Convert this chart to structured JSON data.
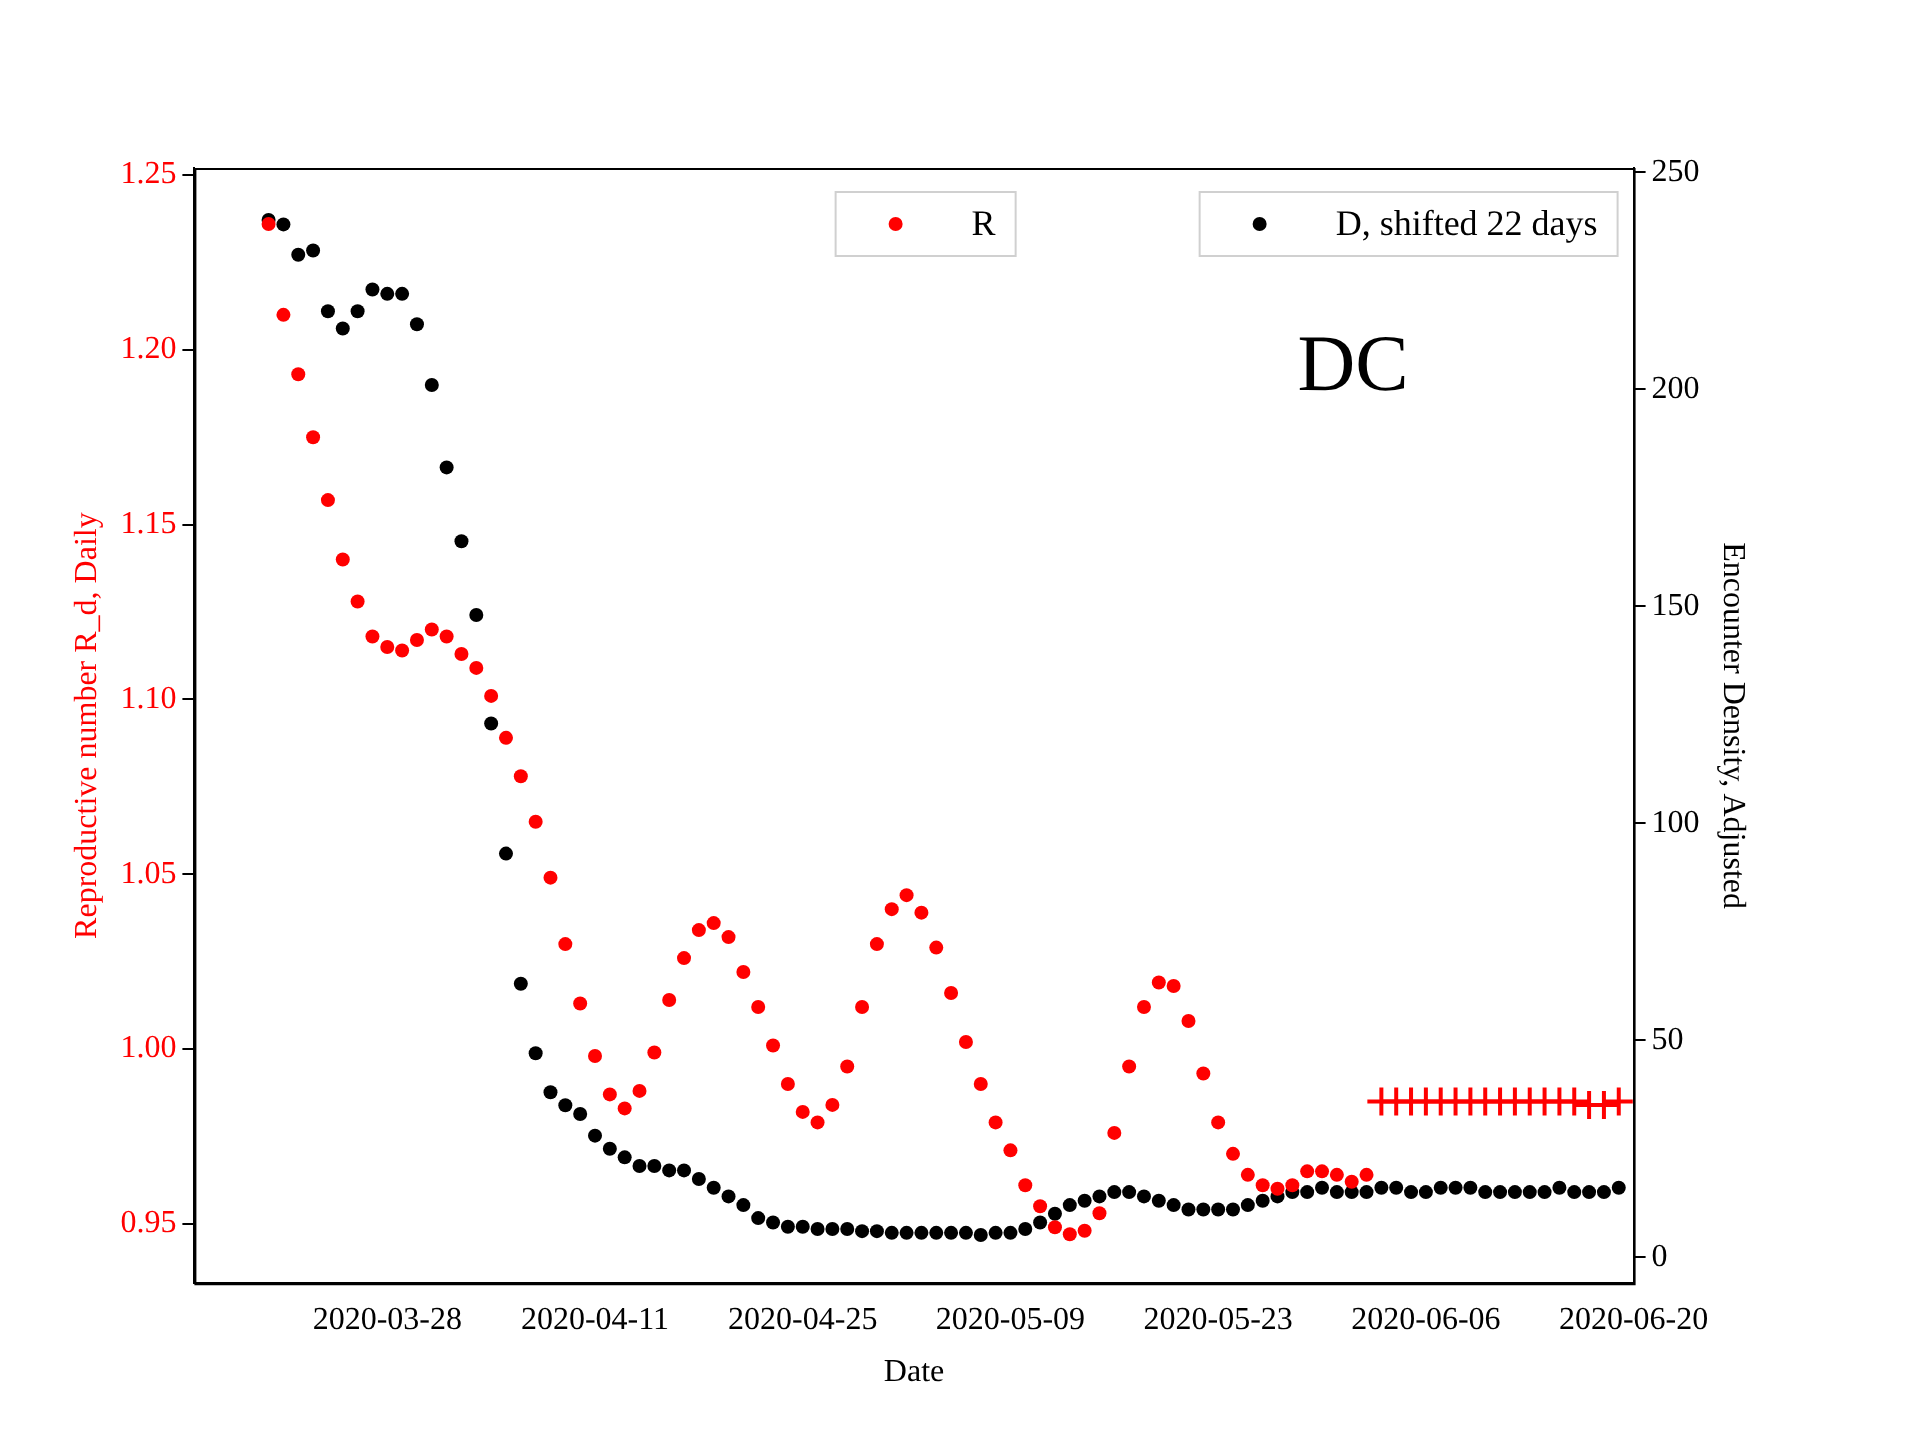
{
  "chart_data": {
    "type": "scatter",
    "xlabel": "Date",
    "ylabel": "Reproductive number R_d, Daily",
    "y2label": "Encounter Density, Adjusted",
    "annotations": [
      "DC"
    ],
    "xlim": [
      "2020-03-15",
      "2020-06-20"
    ],
    "xticks": [
      "2020-03-28",
      "2020-04-11",
      "2020-04-25",
      "2020-05-09",
      "2020-05-23",
      "2020-06-06",
      "2020-06-20"
    ],
    "ylim": [
      0.933,
      1.252
    ],
    "yticks": [
      0.95,
      {
        "value": 1.0,
        "label": "1.00"
      },
      1.05,
      {
        "value": 1.1,
        "label": "1.10"
      },
      1.15,
      {
        "value": 1.2,
        "label": "1.20"
      },
      1.25
    ],
    "y2lim": [
      -6,
      251
    ],
    "y2ticks": [
      0,
      50,
      100,
      150,
      200,
      250
    ],
    "grid": false,
    "legend": "top right",
    "marker": "circle",
    "series": [
      {
        "name": "R",
        "color": "#ff0000",
        "axis": "y",
        "x": [
          "2020-03-20",
          "2020-03-21",
          "2020-03-22",
          "2020-03-23",
          "2020-03-24",
          "2020-03-25",
          "2020-03-26",
          "2020-03-27",
          "2020-03-28",
          "2020-03-29",
          "2020-03-30",
          "2020-03-31",
          "2020-04-01",
          "2020-04-02",
          "2020-04-03",
          "2020-04-04",
          "2020-04-05",
          "2020-04-06",
          "2020-04-07",
          "2020-04-08",
          "2020-04-09",
          "2020-04-10",
          "2020-04-11",
          "2020-04-12",
          "2020-04-13",
          "2020-04-14",
          "2020-04-15",
          "2020-04-16",
          "2020-04-17",
          "2020-04-18",
          "2020-04-19",
          "2020-04-20",
          "2020-04-21",
          "2020-04-22",
          "2020-04-23",
          "2020-04-24",
          "2020-04-25",
          "2020-04-26",
          "2020-04-27",
          "2020-04-28",
          "2020-04-29",
          "2020-04-30",
          "2020-05-01",
          "2020-05-02",
          "2020-05-03",
          "2020-05-04",
          "2020-05-05",
          "2020-05-06",
          "2020-05-07",
          "2020-05-08",
          "2020-05-09",
          "2020-05-10",
          "2020-05-11",
          "2020-05-12",
          "2020-05-13",
          "2020-05-14",
          "2020-05-15",
          "2020-05-16",
          "2020-05-17",
          "2020-05-18",
          "2020-05-19",
          "2020-05-20",
          "2020-05-21",
          "2020-05-22",
          "2020-05-23",
          "2020-05-24",
          "2020-05-25",
          "2020-05-26",
          "2020-05-27",
          "2020-05-28",
          "2020-05-29",
          "2020-05-30",
          "2020-05-31",
          "2020-06-01",
          "2020-06-02"
        ],
        "values": [
          1.236,
          1.21,
          1.193,
          1.175,
          1.157,
          1.14,
          1.128,
          1.118,
          1.115,
          1.114,
          1.117,
          1.12,
          1.118,
          1.113,
          1.109,
          1.101,
          1.089,
          1.078,
          1.065,
          1.049,
          1.03,
          1.013,
          0.998,
          0.987,
          0.983,
          0.988,
          0.999,
          1.014,
          1.026,
          1.034,
          1.036,
          1.032,
          1.022,
          1.012,
          1.001,
          0.99,
          0.982,
          0.979,
          0.984,
          0.995,
          1.012,
          1.03,
          1.04,
          1.044,
          1.039,
          1.029,
          1.016,
          1.002,
          0.99,
          0.979,
          0.971,
          0.961,
          0.955,
          0.949,
          0.947,
          0.948,
          0.953,
          0.976,
          0.995,
          1.012,
          1.019,
          1.018,
          1.008,
          0.993,
          0.979,
          0.97,
          0.964,
          0.961,
          0.96,
          0.961,
          0.965,
          0.965,
          0.964,
          0.962,
          0.964
        ]
      },
      {
        "color": "#ff0000",
        "axis": "y",
        "marker": "cross",
        "x": [
          "2020-06-03",
          "2020-06-04",
          "2020-06-05",
          "2020-06-06",
          "2020-06-07",
          "2020-06-08",
          "2020-06-09",
          "2020-06-10",
          "2020-06-11",
          "2020-06-12",
          "2020-06-13",
          "2020-06-14",
          "2020-06-15",
          "2020-06-16",
          "2020-06-17",
          "2020-06-18",
          "2020-06-19"
        ],
        "values": [
          0.985,
          0.985,
          0.985,
          0.985,
          0.985,
          0.985,
          0.985,
          0.985,
          0.985,
          0.985,
          0.985,
          0.985,
          0.985,
          0.985,
          0.984,
          0.984,
          0.985
        ]
      },
      {
        "name": "D, shifted 22 days",
        "color": "#000000",
        "axis": "y2",
        "x": [
          "2020-03-20",
          "2020-03-21",
          "2020-03-22",
          "2020-03-23",
          "2020-03-24",
          "2020-03-25",
          "2020-03-26",
          "2020-03-27",
          "2020-03-28",
          "2020-03-29",
          "2020-03-30",
          "2020-03-31",
          "2020-04-01",
          "2020-04-02",
          "2020-04-03",
          "2020-04-04",
          "2020-04-05",
          "2020-04-06",
          "2020-04-07",
          "2020-04-08",
          "2020-04-09",
          "2020-04-10",
          "2020-04-11",
          "2020-04-12",
          "2020-04-13",
          "2020-04-14",
          "2020-04-15",
          "2020-04-16",
          "2020-04-17",
          "2020-04-18",
          "2020-04-19",
          "2020-04-20",
          "2020-04-21",
          "2020-04-22",
          "2020-04-23",
          "2020-04-24",
          "2020-04-25",
          "2020-04-26",
          "2020-04-27",
          "2020-04-28",
          "2020-04-29",
          "2020-04-30",
          "2020-05-01",
          "2020-05-02",
          "2020-05-03",
          "2020-05-04",
          "2020-05-05",
          "2020-05-06",
          "2020-05-07",
          "2020-05-08",
          "2020-05-09",
          "2020-05-10",
          "2020-05-11",
          "2020-05-12",
          "2020-05-13",
          "2020-05-14",
          "2020-05-15",
          "2020-05-16",
          "2020-05-17",
          "2020-05-18",
          "2020-05-19",
          "2020-05-20",
          "2020-05-21",
          "2020-05-22",
          "2020-05-23",
          "2020-05-24",
          "2020-05-25",
          "2020-05-26",
          "2020-05-27",
          "2020-05-28",
          "2020-05-29",
          "2020-05-30",
          "2020-05-31",
          "2020-06-01",
          "2020-06-02",
          "2020-06-03",
          "2020-06-04",
          "2020-06-05",
          "2020-06-06",
          "2020-06-07",
          "2020-06-08",
          "2020-06-09",
          "2020-06-10",
          "2020-06-11",
          "2020-06-12",
          "2020-06-13",
          "2020-06-14",
          "2020-06-15",
          "2020-06-16",
          "2020-06-17",
          "2020-06-18",
          "2020-06-19"
        ],
        "values": [
          239,
          238,
          231,
          232,
          218,
          214,
          218,
          223,
          222,
          222,
          215,
          201,
          182,
          165,
          148,
          123,
          93,
          63,
          47,
          38,
          35,
          33,
          28,
          25,
          23,
          21,
          21,
          20,
          20,
          18,
          16,
          14,
          12,
          9,
          8,
          7,
          7,
          6.5,
          6.5,
          6.5,
          6,
          6,
          5.6,
          5.6,
          5.6,
          5.6,
          5.6,
          5.6,
          5.1,
          5.6,
          5.6,
          6.5,
          8,
          10,
          12,
          13,
          14,
          15,
          15,
          14,
          13,
          12,
          11,
          11,
          11,
          11,
          12,
          13,
          14,
          15,
          15,
          16,
          15,
          15,
          15,
          16,
          16,
          15,
          15,
          16,
          16,
          16,
          15,
          15,
          15,
          15,
          15,
          16,
          15,
          15,
          15,
          16
        ]
      }
    ]
  }
}
